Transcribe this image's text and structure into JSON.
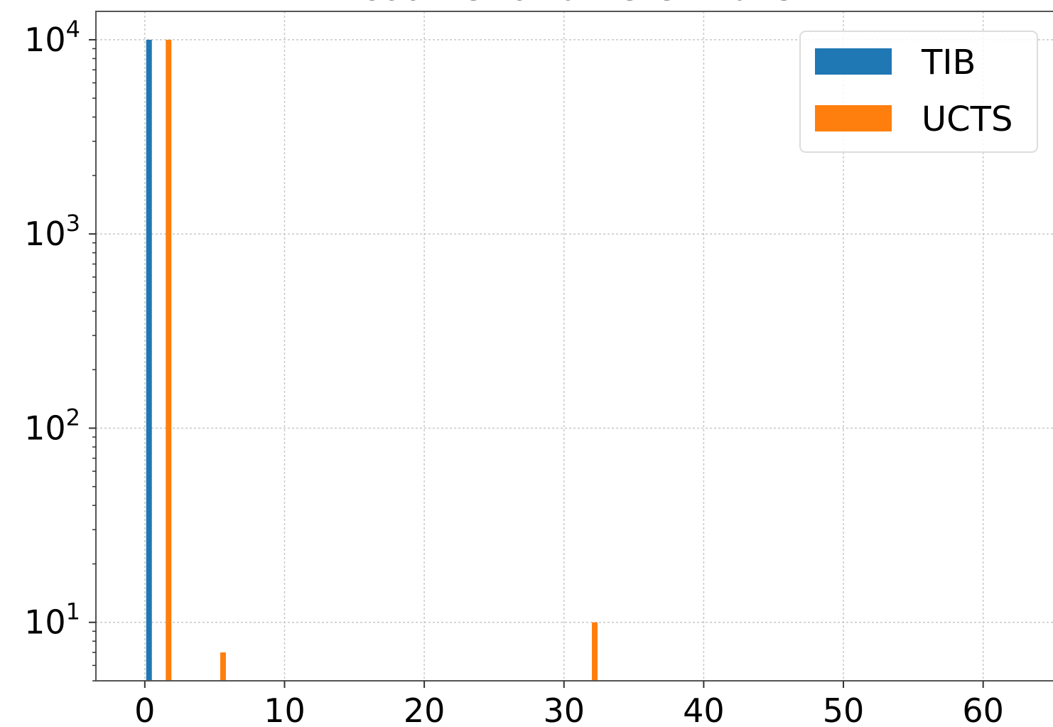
{
  "chart_data": {
    "type": "bar",
    "title": "counts for different bits",
    "xlabel": "",
    "ylabel": "",
    "y_scale": "log",
    "xlim": [
      -3.5,
      65
    ],
    "ylim": [
      5,
      14000
    ],
    "x_ticks": [
      0,
      10,
      20,
      30,
      40,
      50,
      60
    ],
    "x_tick_labels": [
      "0",
      "10",
      "20",
      "30",
      "40",
      "50",
      "60"
    ],
    "y_major_ticks": [
      10,
      100,
      1000,
      10000
    ],
    "y_tick_labels": [
      {
        "base": "10",
        "exp": "1"
      },
      {
        "base": "10",
        "exp": "2"
      },
      {
        "base": "10",
        "exp": "3"
      },
      {
        "base": "10",
        "exp": "4"
      }
    ],
    "grid": true,
    "legend_position": "top-right",
    "series": [
      {
        "name": "TIB",
        "color": "#1f77b4",
        "points": [
          {
            "x": 0.3,
            "y": 10000
          }
        ]
      },
      {
        "name": "UCTS",
        "color": "#ff7f0e",
        "points": [
          {
            "x": 1.7,
            "y": 10000
          },
          {
            "x": 5.6,
            "y": 7
          },
          {
            "x": 32.2,
            "y": 10
          }
        ]
      }
    ]
  }
}
